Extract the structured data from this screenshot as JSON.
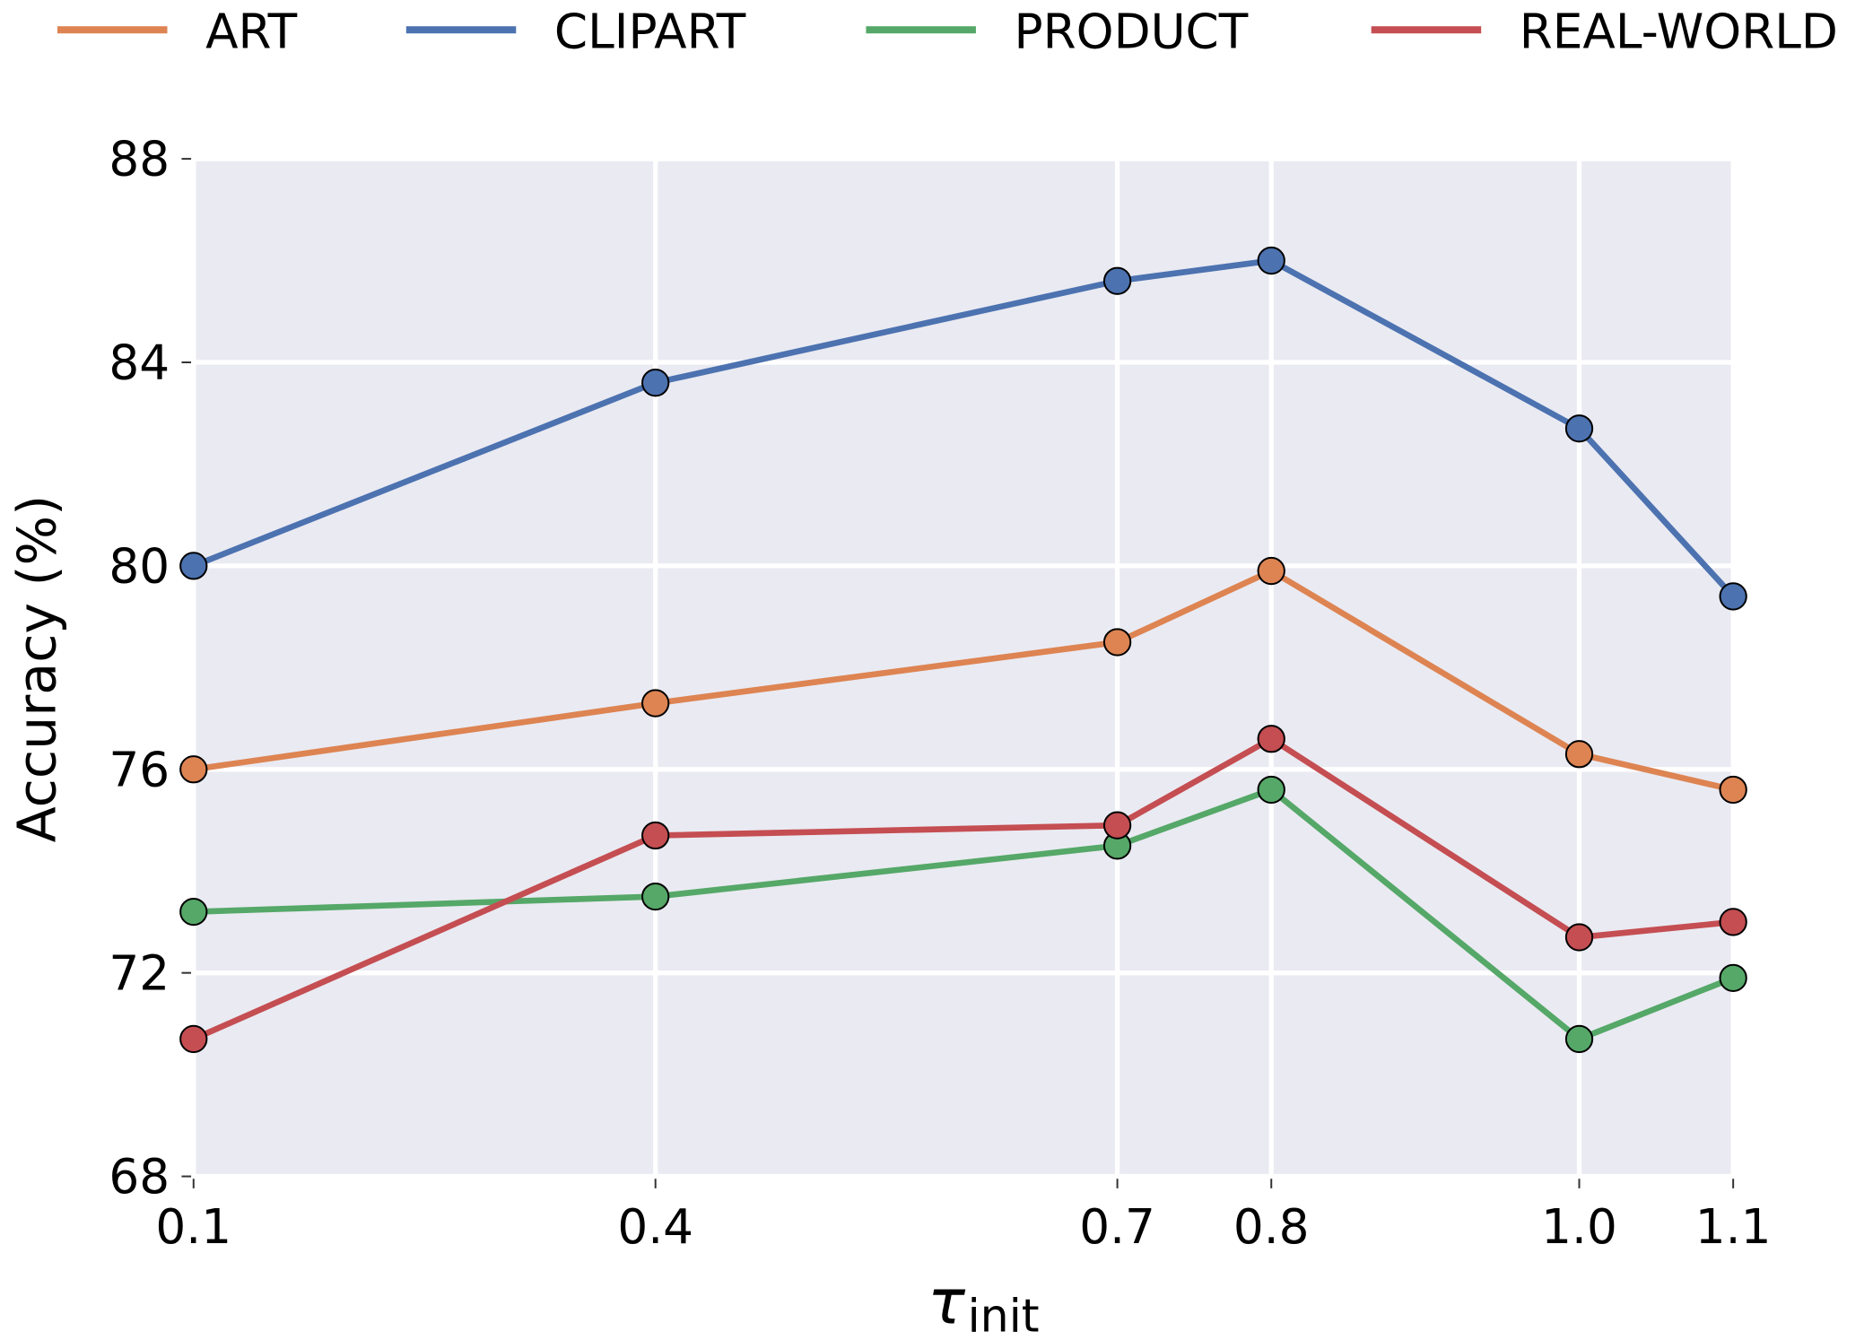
{
  "chart_data": {
    "type": "line",
    "xlabel": "τ",
    "xlabel_subscript": "init",
    "ylabel": "Accuracy (%)",
    "x": [
      0.1,
      0.4,
      0.7,
      0.8,
      1.0,
      1.1
    ],
    "series": [
      {
        "name": "ART",
        "color": "#dd8452",
        "values": [
          76.0,
          77.3,
          78.5,
          79.9,
          76.3,
          75.6
        ]
      },
      {
        "name": "CLIPART",
        "color": "#4c72b0",
        "values": [
          80.0,
          83.6,
          85.6,
          86.0,
          82.7,
          79.4
        ]
      },
      {
        "name": "PRODUCT",
        "color": "#55a868",
        "values": [
          73.2,
          73.5,
          74.5,
          75.6,
          70.7,
          71.9
        ]
      },
      {
        "name": "REAL-WORLD",
        "color": "#c44e52",
        "values": [
          70.7,
          74.7,
          74.9,
          76.6,
          72.7,
          73.0
        ]
      }
    ],
    "xlim": [
      0.1,
      1.1
    ],
    "xticks": [
      0.1,
      0.4,
      0.7,
      0.8,
      {
        "value": 1.0,
        "label": "1.0"
      },
      1.1
    ],
    "ylim": [
      68,
      88
    ],
    "yticks": [
      68,
      72,
      76,
      80,
      84,
      88
    ],
    "grid": true,
    "legend": "top",
    "background": "#eaeaf2"
  }
}
